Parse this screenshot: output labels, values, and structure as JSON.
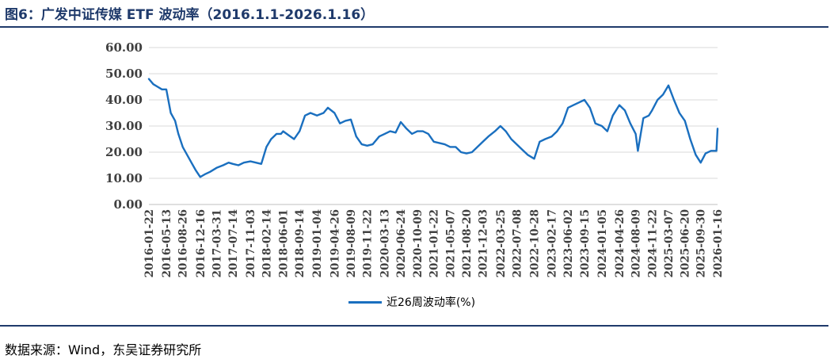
{
  "title": "图6：广发中证传媒 ETF 波动率（2016.1.1-2026.1.16）",
  "source": "数据来源：Wind，东吴证券研究所",
  "colors": {
    "series": "#1a6fbf",
    "rule": "#1f3a6b",
    "grid": "#d9d9d9"
  },
  "chart_data": {
    "type": "line",
    "title": "",
    "xlabel": "",
    "ylabel": "",
    "ylim": [
      0,
      60
    ],
    "yticks": [
      "0.00",
      "10.00",
      "20.00",
      "30.00",
      "40.00",
      "50.00",
      "60.00"
    ],
    "xticks": [
      "2016-01-22",
      "2016-05-13",
      "2016-08-26",
      "2016-12-16",
      "2017-03-31",
      "2017-07-14",
      "2017-11-03",
      "2018-02-14",
      "2018-06-01",
      "2018-09-14",
      "2019-01-04",
      "2019-04-26",
      "2019-08-09",
      "2019-11-22",
      "2020-03-13",
      "2020-06-24",
      "2020-10-09",
      "2021-01-22",
      "2021-05-07",
      "2021-08-20",
      "2021-12-03",
      "2022-03-25",
      "2022-07-08",
      "2022-10-28",
      "2023-02-17",
      "2023-06-02",
      "2023-09-15",
      "2024-01-05",
      "2024-04-26",
      "2024-08-09",
      "2024-11-22",
      "2025-03-07",
      "2025-06-20",
      "2025-09-30",
      "2026-01-16"
    ],
    "grid": true,
    "legend_position": "bottom",
    "series": [
      {
        "name": "近26周波动率(%)",
        "x": [
          "2016-01-22",
          "2016-02-19",
          "2016-03-18",
          "2016-04-15",
          "2016-05-13",
          "2016-06-10",
          "2016-07-08",
          "2016-07-29",
          "2016-08-26",
          "2016-09-23",
          "2016-10-21",
          "2016-11-18",
          "2016-12-16",
          "2017-01-13",
          "2017-02-17",
          "2017-03-31",
          "2017-05-12",
          "2017-06-16",
          "2017-07-14",
          "2017-08-18",
          "2017-09-22",
          "2017-11-03",
          "2017-12-08",
          "2018-01-12",
          "2018-02-14",
          "2018-03-16",
          "2018-04-20",
          "2018-05-18",
          "2018-06-01",
          "2018-07-06",
          "2018-08-10",
          "2018-09-14",
          "2018-10-19",
          "2018-11-23",
          "2019-01-04",
          "2019-02-15",
          "2019-03-15",
          "2019-04-26",
          "2019-05-31",
          "2019-07-05",
          "2019-08-09",
          "2019-09-13",
          "2019-10-18",
          "2019-11-22",
          "2019-12-27",
          "2020-02-07",
          "2020-03-13",
          "2020-04-17",
          "2020-05-22",
          "2020-06-24",
          "2020-07-31",
          "2020-09-04",
          "2020-10-09",
          "2020-11-13",
          "2020-12-18",
          "2021-01-22",
          "2021-02-26",
          "2021-04-02",
          "2021-05-07",
          "2021-06-11",
          "2021-07-16",
          "2021-08-20",
          "2021-09-24",
          "2021-10-29",
          "2021-12-03",
          "2022-01-07",
          "2022-02-18",
          "2022-03-25",
          "2022-04-29",
          "2022-06-03",
          "2022-07-08",
          "2022-08-12",
          "2022-09-16",
          "2022-10-28",
          "2022-12-02",
          "2023-01-06",
          "2023-02-17",
          "2023-03-24",
          "2023-04-28",
          "2023-06-02",
          "2023-07-07",
          "2023-08-11",
          "2023-09-15",
          "2023-10-20",
          "2023-11-24",
          "2024-01-05",
          "2024-02-09",
          "2024-03-15",
          "2024-04-26",
          "2024-05-31",
          "2024-07-05",
          "2024-08-09",
          "2024-08-23",
          "2024-09-27",
          "2024-11-01",
          "2024-11-22",
          "2024-12-27",
          "2025-01-31",
          "2025-03-07",
          "2025-04-11",
          "2025-05-16",
          "2025-06-20",
          "2025-07-25",
          "2025-08-29",
          "2025-09-30",
          "2025-10-31",
          "2025-12-05",
          "2026-01-09",
          "2026-01-16"
        ],
        "values": [
          48,
          46,
          45,
          44,
          44,
          35,
          32,
          27,
          22,
          19,
          16,
          13,
          10.5,
          11.5,
          12.5,
          14,
          15,
          16,
          15.5,
          15,
          16,
          16.5,
          16,
          15.5,
          22,
          25,
          27,
          27,
          28,
          26.5,
          25,
          28,
          34,
          35,
          34,
          35,
          37,
          35,
          31,
          32,
          32.5,
          26,
          23,
          22.5,
          23,
          26,
          27,
          28,
          27.5,
          31.5,
          29,
          27,
          28,
          28,
          27,
          24,
          23.5,
          23,
          22,
          22,
          20,
          19.5,
          20,
          22,
          24,
          26,
          28,
          30,
          28,
          25,
          23,
          21,
          19,
          17.5,
          24,
          25,
          26,
          28,
          31,
          37,
          38,
          39,
          40,
          37,
          31,
          30,
          28,
          34,
          38,
          36,
          31,
          27,
          20.5,
          33,
          34,
          36,
          40,
          42,
          45.5,
          40,
          35,
          32,
          25,
          19,
          16,
          19.5,
          20.5,
          20.5,
          29
        ]
      }
    ]
  }
}
